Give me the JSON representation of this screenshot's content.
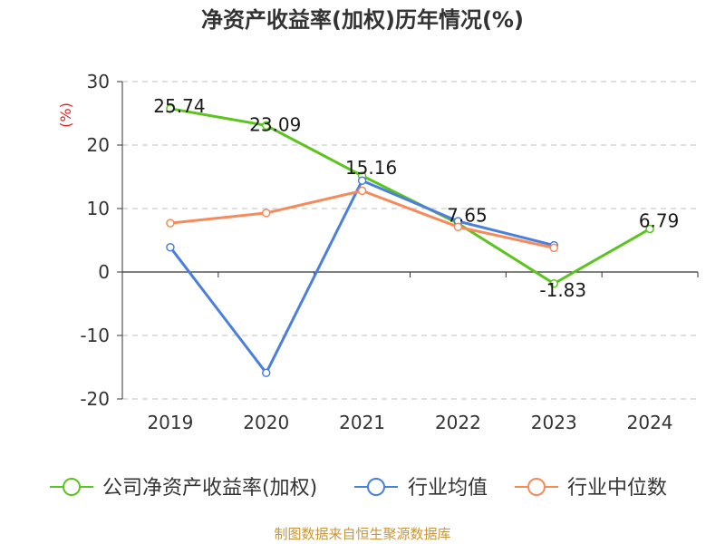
{
  "chart_data": {
    "type": "line",
    "title": "净资产收益率(加权)历年情况(%)",
    "ylabel": "(%)",
    "xlabel": "",
    "categories": [
      "2019",
      "2020",
      "2021",
      "2022",
      "2023",
      "2024"
    ],
    "ylim": [
      -20,
      30
    ],
    "yticks": [
      "30",
      "20",
      "10",
      "0",
      "-10",
      "-20"
    ],
    "grid": true,
    "legend_position": "bottom",
    "series": [
      {
        "name": "公司净资产收益率(加权)",
        "color": "#5cc41f",
        "values": [
          25.74,
          23.09,
          15.16,
          7.65,
          -1.83,
          6.79
        ],
        "labels": [
          "25.74",
          "23.09",
          "15.16",
          "7.65",
          "-1.83",
          "6.79"
        ]
      },
      {
        "name": "行业均值",
        "color": "#4a7fdc",
        "values": [
          3.9,
          -15.9,
          14.4,
          8.0,
          4.2,
          null
        ]
      },
      {
        "name": "行业中位数",
        "color": "#f58a5a",
        "values": [
          7.7,
          9.3,
          12.8,
          7.1,
          3.8,
          null
        ]
      }
    ],
    "source": "制图数据来自恒生聚源数据库"
  }
}
